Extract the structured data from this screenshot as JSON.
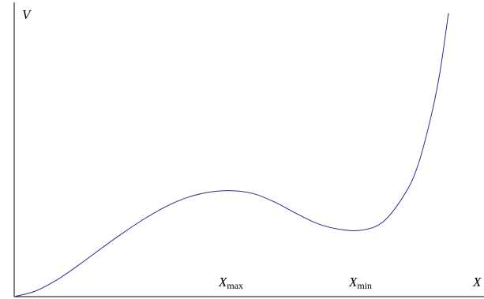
{
  "chart_data": {
    "type": "line",
    "title": "",
    "xlabel": "X",
    "ylabel": "V",
    "grid": false,
    "legend": "none",
    "x_tick_labels": [
      {
        "x": 0.5,
        "main": "X",
        "sub": "max"
      },
      {
        "x": 0.8,
        "main": "X",
        "sub": "min"
      }
    ],
    "xlim": [
      0,
      1.08
    ],
    "ylim": [
      0,
      1
    ],
    "curve_color": "#2b2b8c",
    "series": [
      {
        "x": [
          0.0,
          0.05,
          0.1,
          0.15,
          0.2,
          0.25,
          0.3,
          0.35,
          0.4,
          0.45,
          0.5,
          0.55,
          0.6,
          0.65,
          0.7,
          0.75,
          0.8,
          0.85,
          0.9,
          0.93,
          0.96,
          0.98,
          1.0
        ],
        "y": [
          0.0,
          0.02,
          0.06,
          0.112,
          0.168,
          0.222,
          0.272,
          0.315,
          0.347,
          0.365,
          0.37,
          0.36,
          0.33,
          0.29,
          0.254,
          0.235,
          0.232,
          0.262,
          0.36,
          0.46,
          0.63,
          0.78,
          0.99
        ]
      }
    ]
  }
}
